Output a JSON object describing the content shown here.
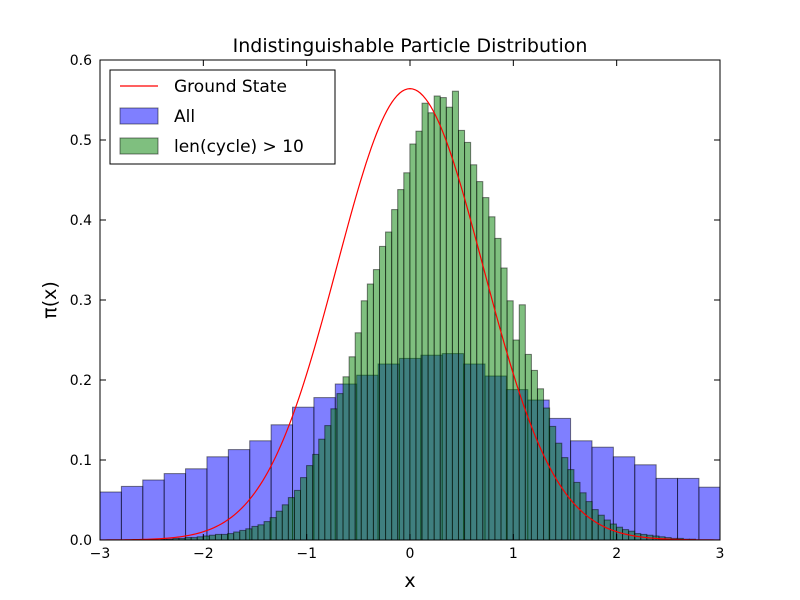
{
  "chart_data": {
    "type": "bar",
    "title": "Indistinguishable Particle Distribution",
    "xlabel": "x",
    "ylabel": "π(x)",
    "xlim": [
      -3,
      3
    ],
    "ylim": [
      0,
      0.6
    ],
    "xticks": [
      -3,
      -2,
      -1,
      0,
      1,
      2,
      3
    ],
    "xtick_labels": [
      "−3",
      "−2",
      "−1",
      "0",
      "1",
      "2",
      "3"
    ],
    "yticks": [
      0.0,
      0.1,
      0.2,
      0.3,
      0.4,
      0.5,
      0.6
    ],
    "ytick_labels": [
      "0.0",
      "0.1",
      "0.2",
      "0.3",
      "0.4",
      "0.5",
      "0.6"
    ],
    "grid": false,
    "legend_position": "top-left",
    "series": [
      {
        "name": "All",
        "kind": "histogram",
        "color": "#0000ff",
        "alpha": 0.5,
        "bin_start": -3.0,
        "bin_width": 0.207,
        "values": [
          0.06,
          0.067,
          0.075,
          0.083,
          0.089,
          0.104,
          0.113,
          0.124,
          0.144,
          0.166,
          0.178,
          0.195,
          0.206,
          0.22,
          0.227,
          0.231,
          0.233,
          0.22,
          0.205,
          0.188,
          0.175,
          0.152,
          0.124,
          0.116,
          0.104,
          0.094,
          0.077,
          0.077,
          0.066,
          0.061
        ]
      },
      {
        "name": "len(cycle) > 10",
        "kind": "histogram",
        "color": "#008000",
        "alpha": 0.5,
        "bin_start": -3.0,
        "bin_width": 0.0588,
        "values": [
          0.0,
          0.0,
          0.0,
          0.0,
          0.0,
          0.0,
          0.0,
          0.0,
          0.0,
          0.0,
          0.001,
          0.001,
          0.002,
          0.002,
          0.003,
          0.003,
          0.004,
          0.005,
          0.006,
          0.007,
          0.007,
          0.008,
          0.01,
          0.012,
          0.014,
          0.017,
          0.019,
          0.023,
          0.028,
          0.036,
          0.044,
          0.053,
          0.062,
          0.078,
          0.093,
          0.107,
          0.126,
          0.143,
          0.164,
          0.183,
          0.204,
          0.229,
          0.259,
          0.299,
          0.32,
          0.338,
          0.367,
          0.385,
          0.413,
          0.438,
          0.459,
          0.495,
          0.511,
          0.546,
          0.534,
          0.555,
          0.553,
          0.541,
          0.561,
          0.512,
          0.497,
          0.469,
          0.448,
          0.428,
          0.404,
          0.377,
          0.34,
          0.299,
          0.25,
          0.294,
          0.232,
          0.212,
          0.189,
          0.165,
          0.142,
          0.121,
          0.103,
          0.088,
          0.072,
          0.059,
          0.048,
          0.038,
          0.031,
          0.025,
          0.02,
          0.016,
          0.013,
          0.011,
          0.008,
          0.007,
          0.006,
          0.005,
          0.004,
          0.003,
          0.002,
          0.002,
          0.001,
          0.001,
          0.0,
          0.0,
          0.0,
          0.0
        ]
      },
      {
        "name": "Ground State",
        "kind": "line",
        "color": "#ff0000",
        "function": "exp(-x^2)/sqrt(pi)",
        "samples": 241
      }
    ],
    "legend": [
      {
        "label": "Ground State",
        "type": "line",
        "color": "#ff0000"
      },
      {
        "label": "All",
        "type": "patch",
        "color": "#0000ff",
        "alpha": 0.5
      },
      {
        "label": "len(cycle) > 10",
        "type": "patch",
        "color": "#008000",
        "alpha": 0.5
      }
    ]
  }
}
